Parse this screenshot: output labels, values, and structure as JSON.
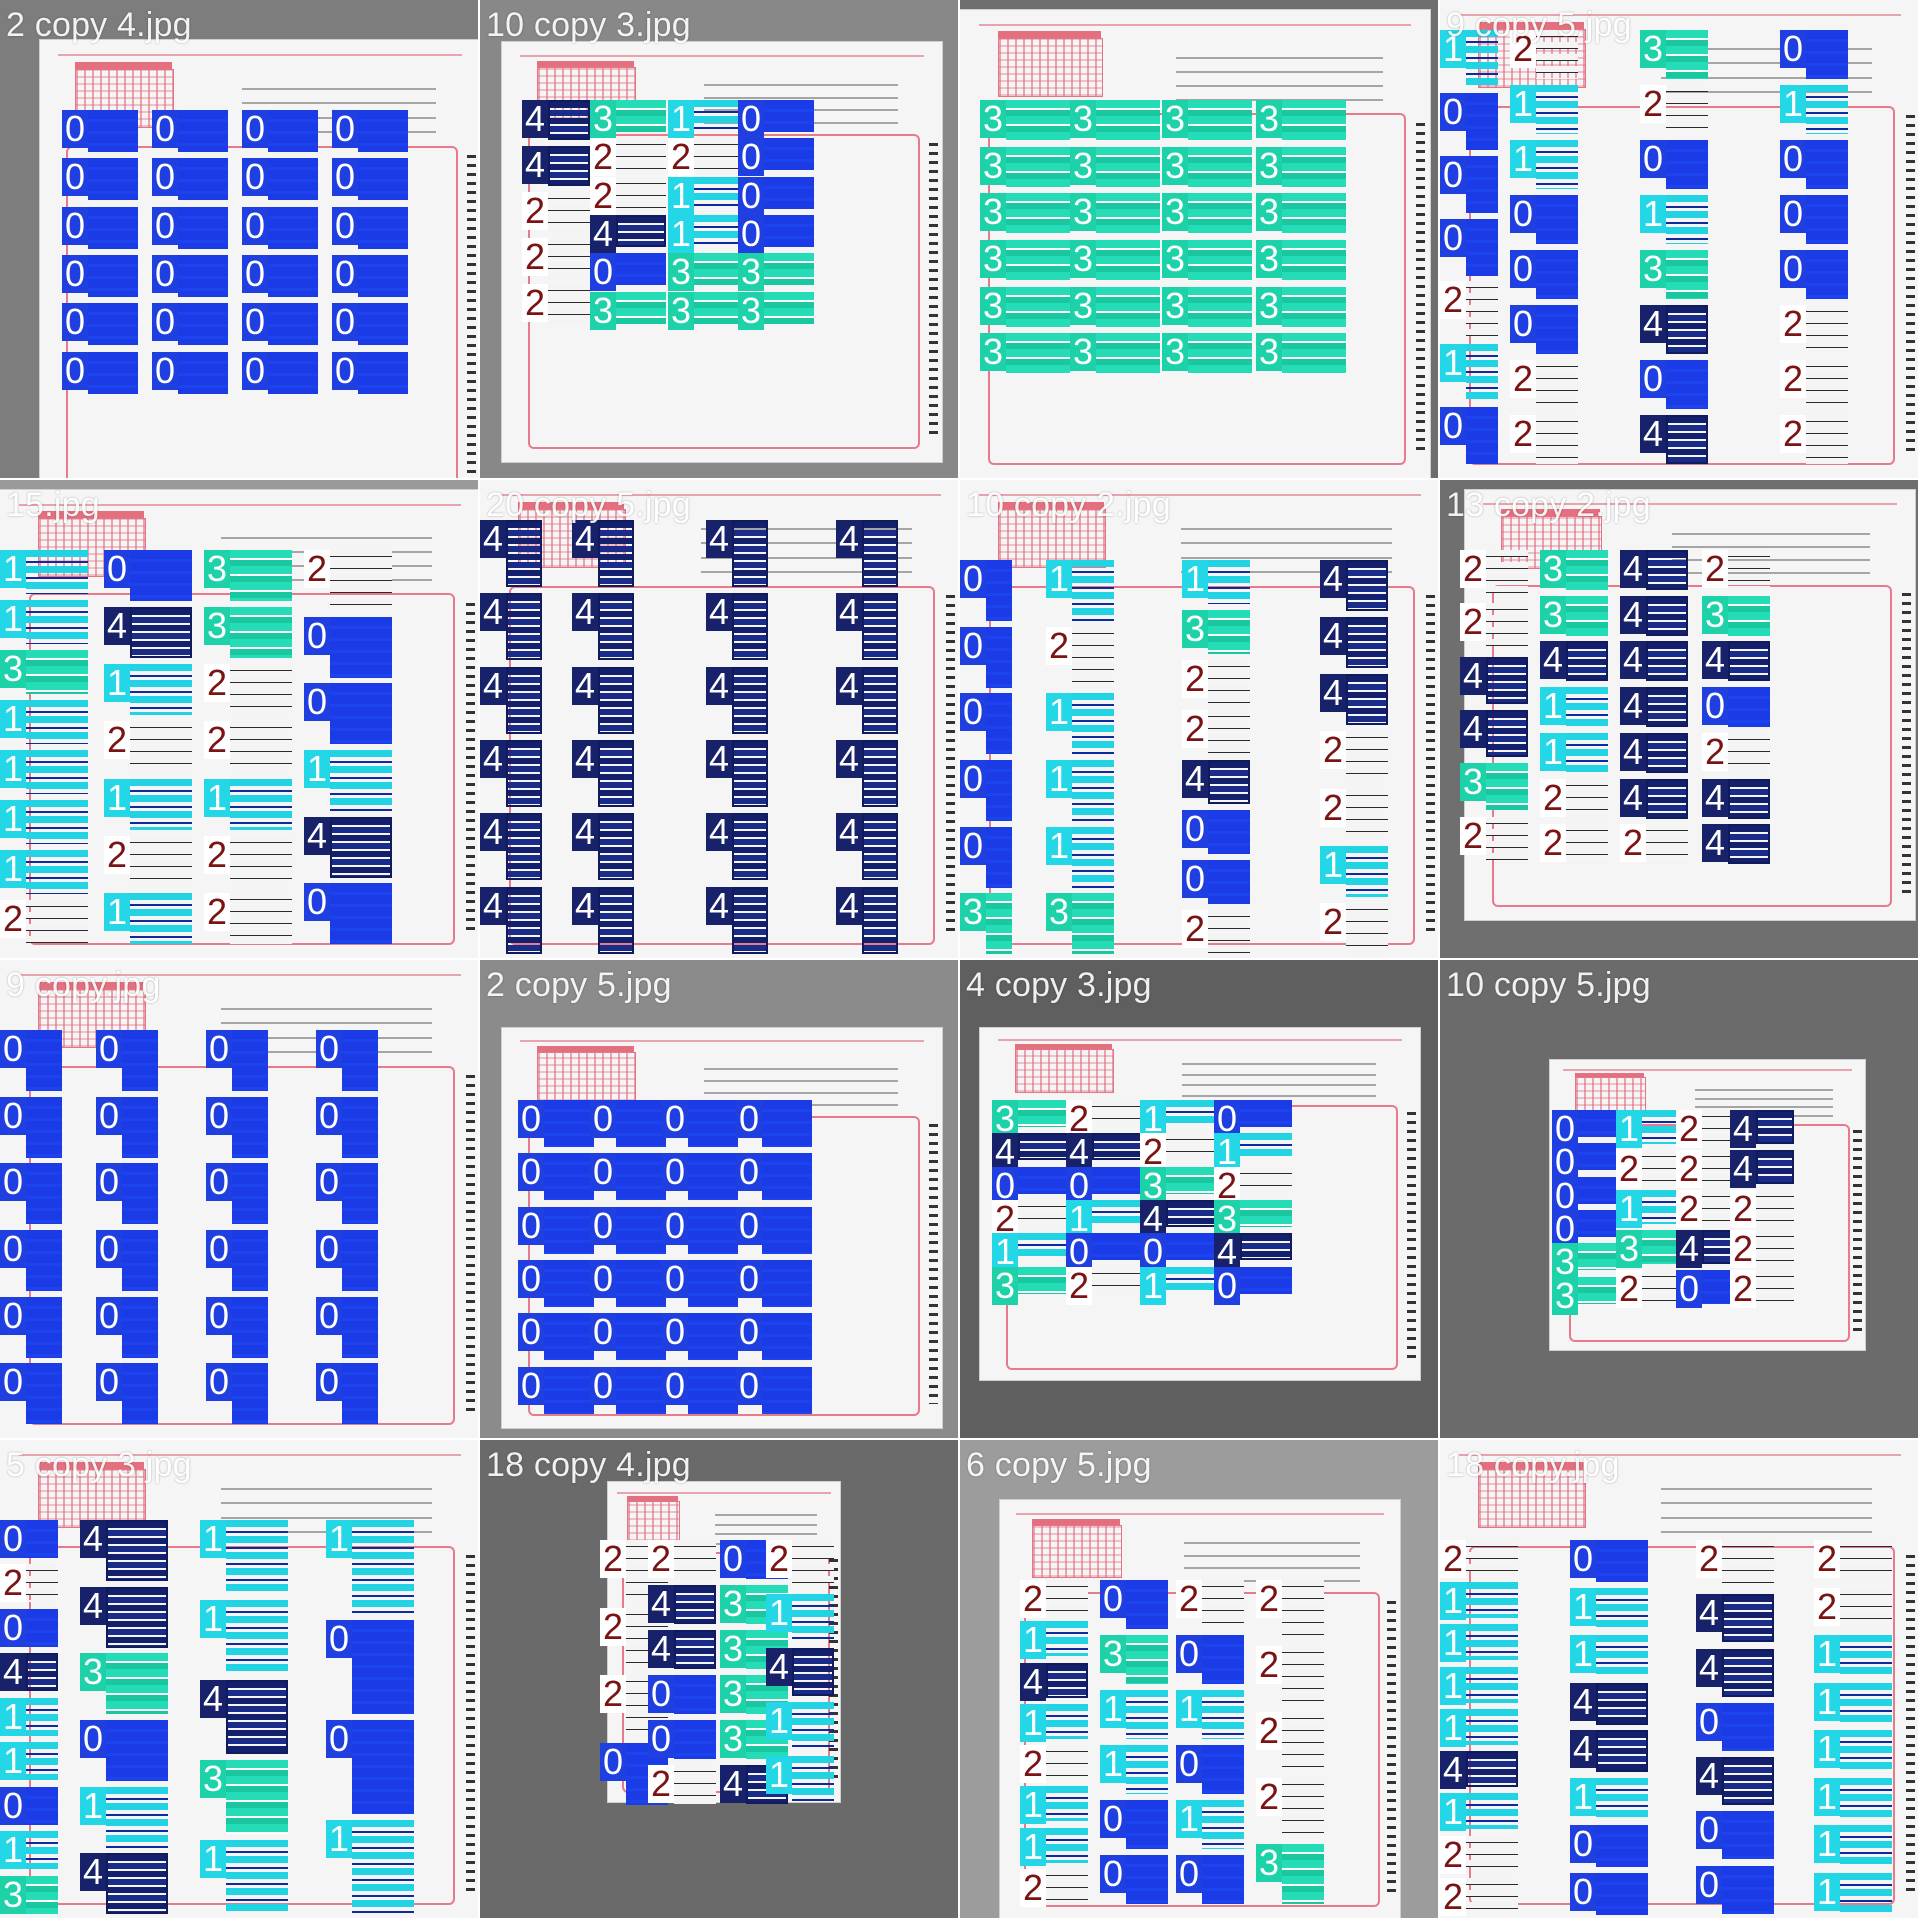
{
  "tiles": [
    {
      "label": "2 copy 4.jpg"
    },
    {
      "label": "10 copy 3.jpg"
    },
    {
      "label": ""
    },
    {
      "label": "9 copy 5.jpg"
    },
    {
      "label": "15.jpg"
    },
    {
      "label": "20 copy 5.jpg"
    },
    {
      "label": "10 copy 2.jpg"
    },
    {
      "label": "13 copy 2.jpg"
    },
    {
      "label": "9 copy.jpg"
    },
    {
      "label": "2 copy 5.jpg"
    },
    {
      "label": "4 copy 3.jpg"
    },
    {
      "label": "10 copy 5.jpg"
    },
    {
      "label": "5 copy 3.jpg"
    },
    {
      "label": "18 copy 4.jpg"
    },
    {
      "label": "6 copy 5.jpg"
    },
    {
      "label": "18 copy.jpg"
    }
  ],
  "class_colors": {
    "0": "#1f3fe0",
    "1": "#23d7e6",
    "2": "#ffffff",
    "3": "#1dd1a9",
    "4": "#17226b"
  },
  "class_digits": [
    "0",
    "1",
    "2",
    "3",
    "4"
  ]
}
